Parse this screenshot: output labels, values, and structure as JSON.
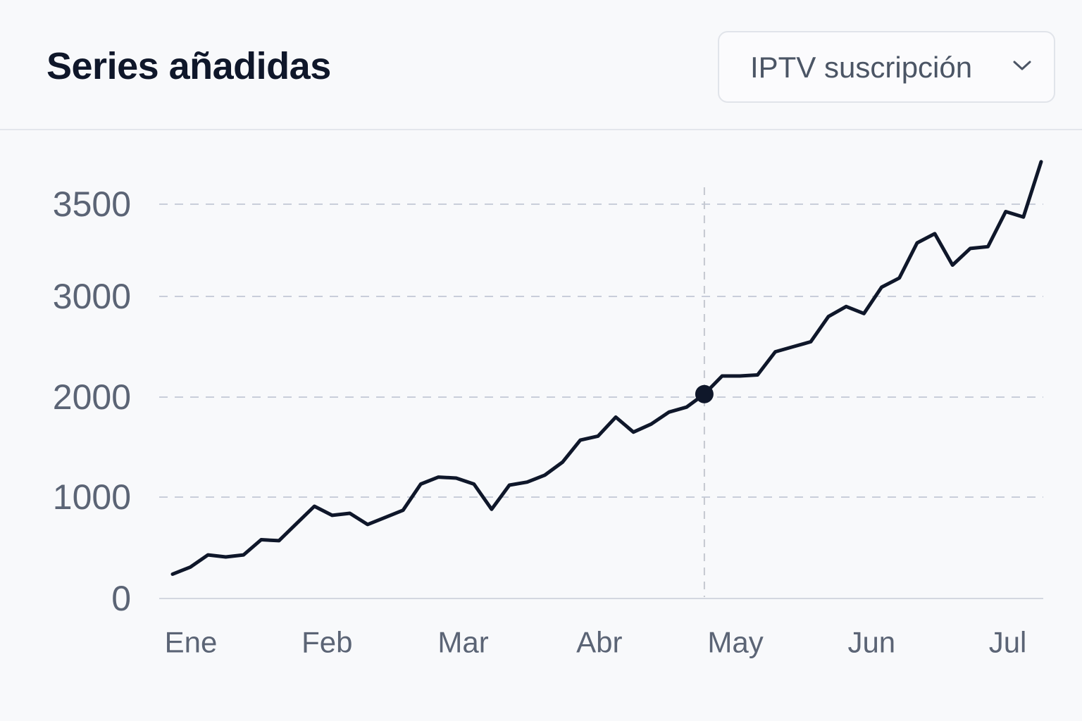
{
  "header": {
    "title": "Series añadidas",
    "select_value": "IPTV suscripción"
  },
  "colors": {
    "line": "#0f172a",
    "grid": "#c9ceda",
    "axis_text": "#5b6475",
    "title": "#0f172a"
  },
  "chart_data": {
    "type": "line",
    "title": "Series añadidas",
    "xlabel": "",
    "ylabel": "",
    "ylim": [
      0,
      3500
    ],
    "y_ticks": [
      "0",
      "1000",
      "2000",
      "3000",
      "3500"
    ],
    "x_ticks": [
      "Ene",
      "Feb",
      "Mar",
      "Abr",
      "May",
      "Jun",
      "Jul"
    ],
    "grid": true,
    "highlight": {
      "x_index": 30,
      "label": "May"
    },
    "series": [
      {
        "values": [
          240,
          310,
          430,
          410,
          430,
          580,
          570,
          740,
          910,
          820,
          840,
          730,
          800,
          870,
          1130,
          1200,
          1190,
          1130,
          880,
          1120,
          1150,
          1220,
          1350,
          1570,
          1610,
          1800,
          1650,
          1730,
          1850,
          1900,
          2030,
          2210,
          2210,
          2220,
          2450,
          2500,
          2550,
          2800,
          2900,
          2830,
          3050,
          3100,
          3290,
          3340,
          3170,
          3260,
          3270,
          3460,
          3430,
          3730
        ]
      }
    ]
  }
}
